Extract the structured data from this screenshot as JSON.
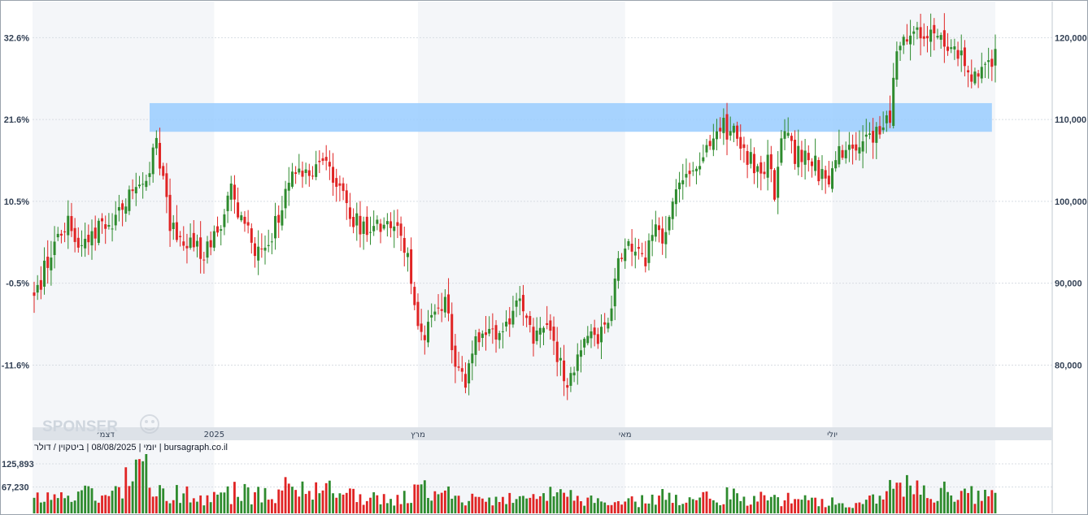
{
  "chart_data": {
    "type": "candlestick",
    "caption": "יומי | 08/08/2025 | ביטקוין / דולר | bursagraph.co.il",
    "watermark": "SPONSER",
    "price_axis": {
      "side": "right",
      "range": [
        73000,
        124000
      ],
      "ticks": [
        {
          "value": 120000,
          "label": "120,000"
        },
        {
          "value": 110000,
          "label": "110,000"
        },
        {
          "value": 100000,
          "label": "100,000"
        },
        {
          "value": 90000,
          "label": "90,000"
        },
        {
          "value": 80000,
          "label": "80,000"
        }
      ]
    },
    "percent_axis": {
      "side": "left",
      "ticks": [
        {
          "value": 120000,
          "label": "32.6%"
        },
        {
          "value": 110000,
          "label": "21.6%"
        },
        {
          "value": 100000,
          "label": "10.5%"
        },
        {
          "value": 90000,
          "label": "-0.5%"
        },
        {
          "value": 80000,
          "label": "-11.6%"
        }
      ]
    },
    "time_axis": {
      "labels": [
        {
          "label": "דצמ׳",
          "index": 21
        },
        {
          "label": "2025",
          "index": 53
        },
        {
          "label": "מרץ",
          "index": 113
        },
        {
          "label": "מאי",
          "index": 174
        },
        {
          "label": "יולי",
          "index": 235
        }
      ],
      "shaded_spans": [
        [
          -8,
          53
        ],
        [
          113,
          174
        ],
        [
          235,
          283
        ]
      ]
    },
    "resistance_zone": {
      "from_index": 34,
      "to_index": 282,
      "low": 108500,
      "high": 112000,
      "color": "#99ccff"
    },
    "volume_axis": {
      "range": [
        0,
        190000
      ],
      "ticks": [
        {
          "value": 125893,
          "label": "125,893"
        },
        {
          "value": 67230,
          "label": "67,230"
        }
      ]
    },
    "colors": {
      "up": "#2e8b2e",
      "down": "#e02424",
      "zone": "#99ccff",
      "band": "#f4f6f9",
      "grid": "#d8dde3"
    },
    "anchors": [
      [
        0,
        88500
      ],
      [
        10,
        98500
      ],
      [
        14,
        94000
      ],
      [
        18,
        96000
      ],
      [
        24,
        98000
      ],
      [
        30,
        101500
      ],
      [
        34,
        104000
      ],
      [
        36,
        107000
      ],
      [
        40,
        97000
      ],
      [
        45,
        95000
      ],
      [
        50,
        94000
      ],
      [
        54,
        96500
      ],
      [
        58,
        101500
      ],
      [
        62,
        97000
      ],
      [
        66,
        93500
      ],
      [
        70,
        96000
      ],
      [
        74,
        101000
      ],
      [
        78,
        104000
      ],
      [
        82,
        103500
      ],
      [
        86,
        104000
      ],
      [
        90,
        101500
      ],
      [
        94,
        97500
      ],
      [
        98,
        96500
      ],
      [
        104,
        96500
      ],
      [
        108,
        97000
      ],
      [
        112,
        88500
      ],
      [
        114,
        83500
      ],
      [
        118,
        85500
      ],
      [
        121,
        89000
      ],
      [
        124,
        80000
      ],
      [
        127,
        78500
      ],
      [
        131,
        83500
      ],
      [
        135,
        84000
      ],
      [
        139,
        85000
      ],
      [
        143,
        87500
      ],
      [
        147,
        83500
      ],
      [
        151,
        85000
      ],
      [
        155,
        80000
      ],
      [
        157,
        77500
      ],
      [
        161,
        83000
      ],
      [
        165,
        83500
      ],
      [
        169,
        84500
      ],
      [
        172,
        93500
      ],
      [
        176,
        94500
      ],
      [
        180,
        93000
      ],
      [
        183,
        97000
      ],
      [
        186,
        95500
      ],
      [
        190,
        103000
      ],
      [
        194,
        104000
      ],
      [
        198,
        107000
      ],
      [
        202,
        109500
      ],
      [
        206,
        108000
      ],
      [
        210,
        105000
      ],
      [
        214,
        104000
      ],
      [
        216,
        105000
      ],
      [
        218,
        101500
      ],
      [
        221,
        109500
      ],
      [
        224,
        105500
      ],
      [
        228,
        106000
      ],
      [
        232,
        103000
      ],
      [
        234,
        102500
      ],
      [
        236,
        106000
      ],
      [
        240,
        107000
      ],
      [
        244,
        108000
      ],
      [
        248,
        108500
      ],
      [
        252,
        110500
      ],
      [
        254,
        118000
      ],
      [
        258,
        121000
      ],
      [
        262,
        120000
      ],
      [
        266,
        120500
      ],
      [
        270,
        118000
      ],
      [
        274,
        117000
      ],
      [
        276,
        115000
      ],
      [
        279,
        116000
      ],
      [
        283,
        117500
      ]
    ],
    "volume_anchors": [
      [
        0,
        38000
      ],
      [
        10,
        45000
      ],
      [
        24,
        55000
      ],
      [
        32,
        110000
      ],
      [
        36,
        80000
      ],
      [
        40,
        55000
      ],
      [
        50,
        35000
      ],
      [
        60,
        55000
      ],
      [
        66,
        45000
      ],
      [
        72,
        50000
      ],
      [
        76,
        70000
      ],
      [
        80,
        60000
      ],
      [
        86,
        60000
      ],
      [
        90,
        45000
      ],
      [
        96,
        38000
      ],
      [
        104,
        35000
      ],
      [
        110,
        45000
      ],
      [
        114,
        60000
      ],
      [
        120,
        55000
      ],
      [
        124,
        50000
      ],
      [
        128,
        38000
      ],
      [
        136,
        42000
      ],
      [
        144,
        30000
      ],
      [
        150,
        40000
      ],
      [
        156,
        55000
      ],
      [
        160,
        45000
      ],
      [
        166,
        30000
      ],
      [
        172,
        30000
      ],
      [
        176,
        30000
      ],
      [
        184,
        40000
      ],
      [
        190,
        45000
      ],
      [
        196,
        40000
      ],
      [
        204,
        45000
      ],
      [
        210,
        35000
      ],
      [
        216,
        40000
      ],
      [
        222,
        35000
      ],
      [
        230,
        32000
      ],
      [
        236,
        30000
      ],
      [
        244,
        30000
      ],
      [
        250,
        35000
      ],
      [
        254,
        80000
      ],
      [
        258,
        60000
      ],
      [
        264,
        50000
      ],
      [
        270,
        55000
      ],
      [
        276,
        50000
      ],
      [
        283,
        42000
      ]
    ],
    "count": 284
  }
}
